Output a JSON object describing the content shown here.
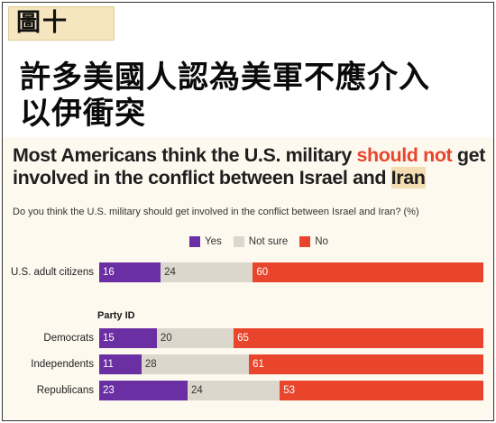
{
  "figure_label": "圖十",
  "chinese_title_line1": "許多美國人認為美軍不應介入",
  "chinese_title_line2": "以伊衝突",
  "chart_data": {
    "type": "bar",
    "orientation": "horizontal",
    "stacked": true,
    "title": {
      "part1": "Most Americans think the U.S. military ",
      "part2_highlight": "should not",
      "part3": " get involved in the conflict between Israel and ",
      "part4_highlight": "Iran"
    },
    "subtitle": "Do you think the U.S. military should get involved in the conflict between Israel and Iran? (%)",
    "group_label": "Party ID",
    "legend_position": "top",
    "xlim": [
      0,
      100
    ],
    "series": [
      {
        "name": "Yes",
        "color": "#6a2fa3"
      },
      {
        "name": "Not sure",
        "color": "#dcd7cd"
      },
      {
        "name": "No",
        "color": "#e8452c"
      }
    ],
    "rows": [
      {
        "label": "U.S. adult citizens",
        "values": [
          16,
          24,
          60
        ]
      },
      {
        "label": "Democrats",
        "values": [
          15,
          20,
          65
        ]
      },
      {
        "label": "Independents",
        "values": [
          11,
          28,
          61
        ]
      },
      {
        "label": "Republicans",
        "values": [
          23,
          24,
          53
        ]
      }
    ]
  }
}
